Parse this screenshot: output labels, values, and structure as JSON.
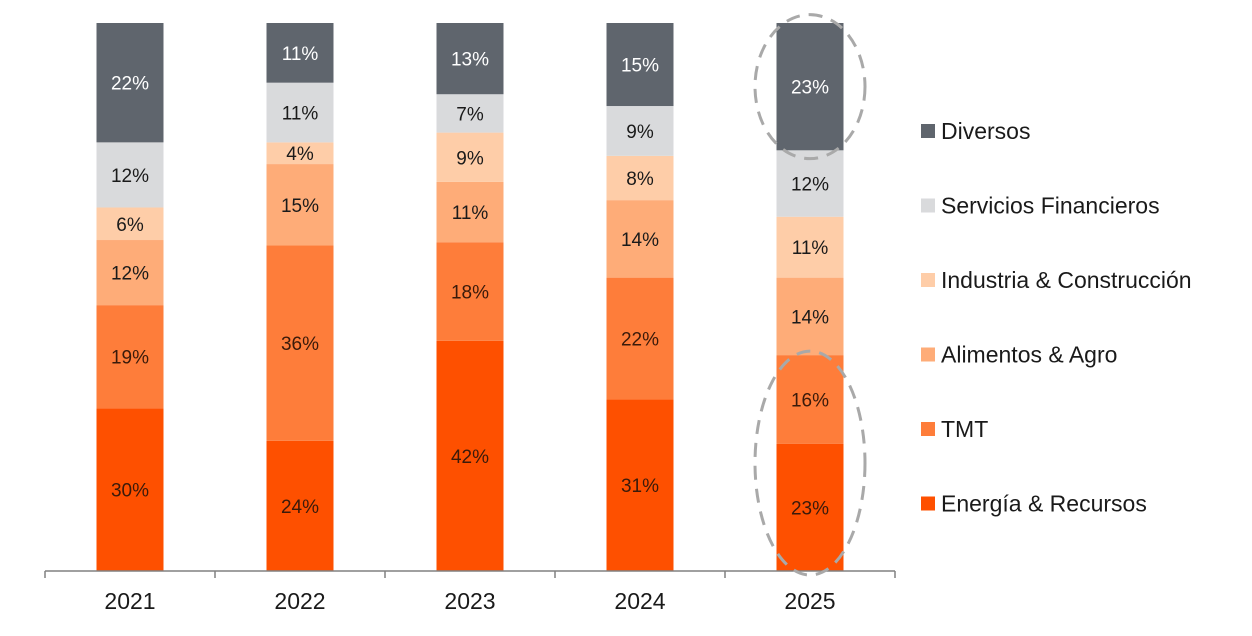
{
  "chart_data": {
    "type": "bar",
    "stacked": true,
    "categories": [
      "2021",
      "2022",
      "2023",
      "2024",
      "2025"
    ],
    "series": [
      {
        "name": "Energía & Recursos",
        "color": "#fe5000",
        "label_color": "#3a1a0a",
        "values": [
          30,
          24,
          42,
          31,
          23
        ],
        "labels": [
          "30%",
          "24%",
          "42%",
          "31%",
          "23%"
        ]
      },
      {
        "name": "TMT",
        "color": "#fe7d3a",
        "label_color": "#3a1a0a",
        "values": [
          19,
          36,
          18,
          22,
          16
        ],
        "labels": [
          "19%",
          "36%",
          "18%",
          "22%",
          "16%"
        ]
      },
      {
        "name": "Alimentos & Agro",
        "color": "#feac78",
        "label_color": "#1a1a1a",
        "values": [
          12,
          15,
          11,
          14,
          14
        ],
        "labels": [
          "12%",
          "15%",
          "11%",
          "14%",
          "14%"
        ]
      },
      {
        "name": "Industria & Construcción",
        "color": "#fecda8",
        "label_color": "#1a1a1a",
        "values": [
          6,
          4,
          9,
          8,
          11
        ],
        "labels": [
          "6%",
          "4%",
          "9%",
          "8%",
          "11%"
        ]
      },
      {
        "name": "Servicios Financieros",
        "color": "#d9dadc",
        "label_color": "#1a1a1a",
        "values": [
          12,
          11,
          7,
          9,
          12
        ],
        "labels": [
          "12%",
          "11%",
          "7%",
          "9%",
          "12%"
        ]
      },
      {
        "name": "Diversos",
        "color": "#5f656d",
        "label_color": "#ffffff",
        "values": [
          22,
          11,
          13,
          15,
          23
        ],
        "labels": [
          "22%",
          "11%",
          "13%",
          "15%",
          "23%"
        ]
      }
    ],
    "legend": [
      "Diversos",
      "Servicios Financieros",
      "Industria & Construcción",
      "Alimentos & Agro",
      "TMT",
      "Energía & Recursos"
    ],
    "legend_position": "right",
    "highlights": [
      {
        "category": "2025",
        "series": "Diversos"
      },
      {
        "category": "2025",
        "series": "TMT"
      },
      {
        "category": "2025",
        "series": "Energía & Recursos"
      }
    ],
    "highlight_color": "#a9a9a9",
    "axis_color": "#808080",
    "title": "",
    "xlabel": "",
    "ylabel": "",
    "grid": false
  }
}
